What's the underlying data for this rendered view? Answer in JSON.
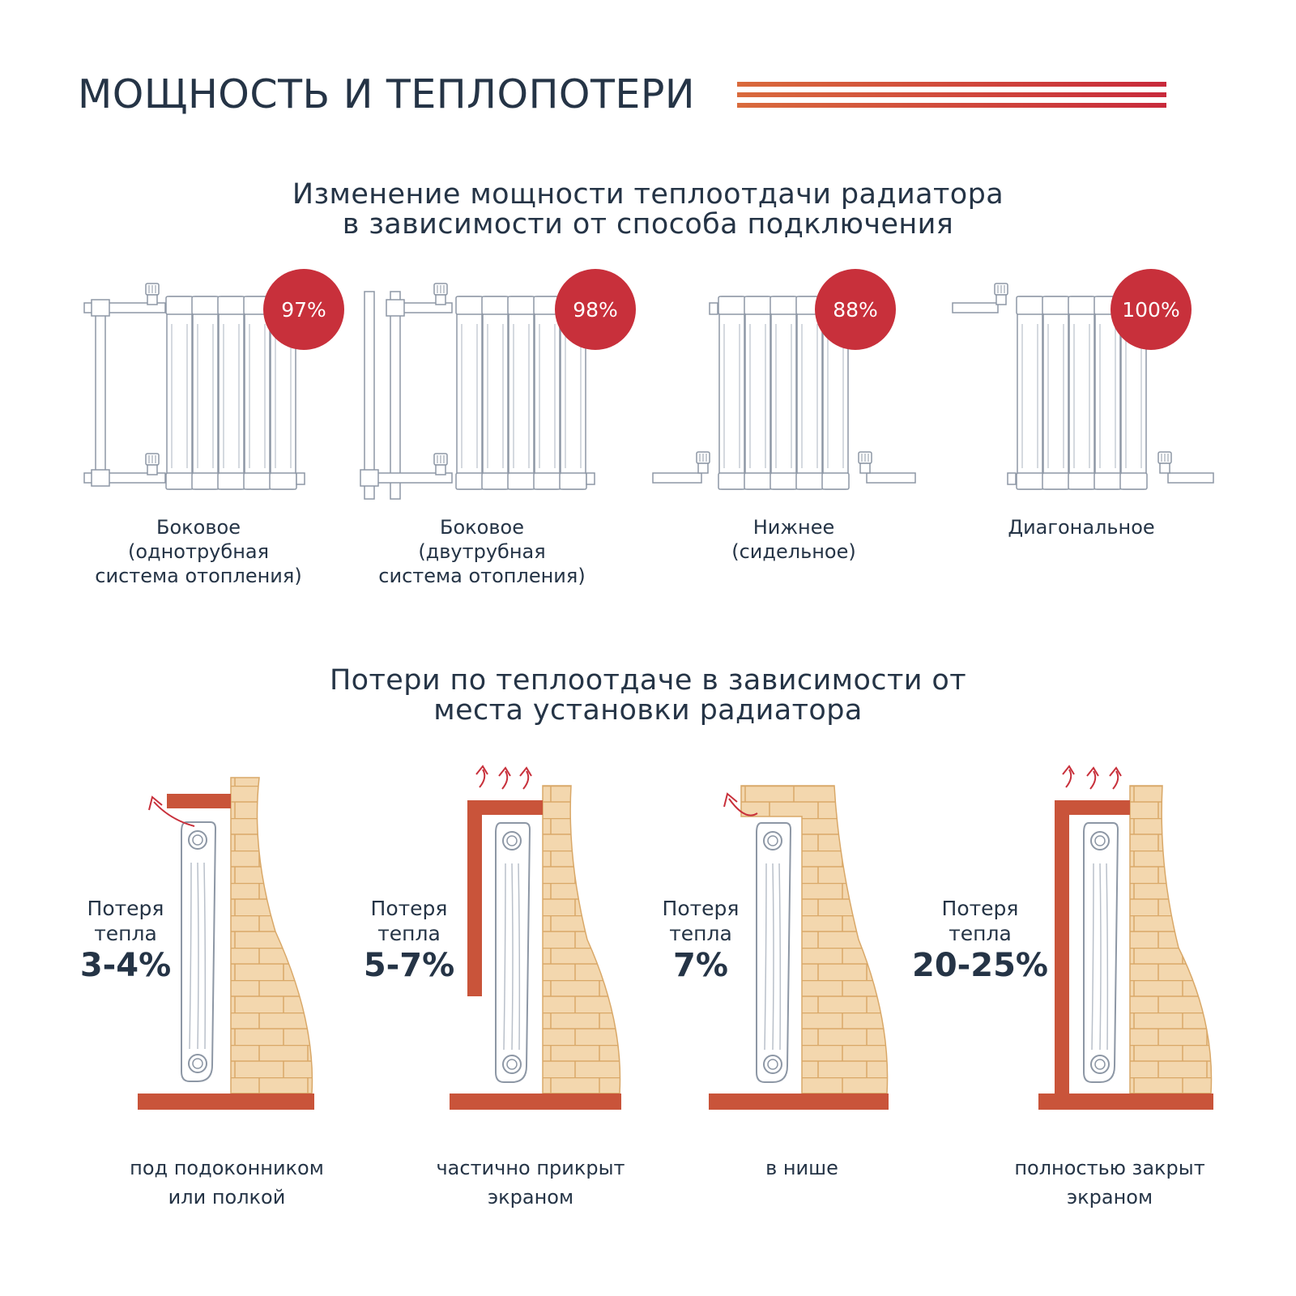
{
  "header": {
    "title": "МОЩНОСТЬ И ТЕПЛОПОТЕРИ"
  },
  "connection_section": {
    "title_lines": [
      "Изменение мощности теплоотдачи радиатора",
      "в зависимости от способа подключения"
    ],
    "items": [
      {
        "percent": "97%",
        "value": 97,
        "label_lines": [
          "Боковое",
          "(однотрубная",
          "система отопления)"
        ]
      },
      {
        "percent": "98%",
        "value": 98,
        "label_lines": [
          "Боковое",
          "(двутрубная",
          "система отопления)"
        ]
      },
      {
        "percent": "88%",
        "value": 88,
        "label_lines": [
          "Нижнее",
          "(сидельное)"
        ]
      },
      {
        "percent": "100%",
        "value": 100,
        "label_lines": [
          "Диагональное"
        ]
      }
    ]
  },
  "placement_section": {
    "title_lines": [
      "Потери по теплоотдаче в зависимости от",
      "места установки радиатора"
    ],
    "items": [
      {
        "caption_lines": [
          "Потеря",
          "тепла"
        ],
        "value": "3-4%",
        "label_lines": [
          "под подоконником",
          "или полкой"
        ]
      },
      {
        "caption_lines": [
          "Потеря",
          "тепла"
        ],
        "value": "5-7%",
        "label_lines": [
          "частично прикрыт",
          "экраном"
        ]
      },
      {
        "caption_lines": [
          "Потеря",
          "тепла"
        ],
        "value": "7%",
        "label_lines": [
          "в нише"
        ]
      },
      {
        "caption_lines": [
          "Потеря",
          "тепла"
        ],
        "value": "20-25%",
        "label_lines": [
          "полностью закрыт",
          "экраном"
        ]
      }
    ]
  },
  "colors": {
    "text": "#253446",
    "badge": "#c8303b",
    "brick": "#f3d7ae",
    "brick_line": "#d9a868",
    "shelf": "#c9543a",
    "stripe_start": "#d5603a",
    "stripe_end": "#c82a3b"
  }
}
